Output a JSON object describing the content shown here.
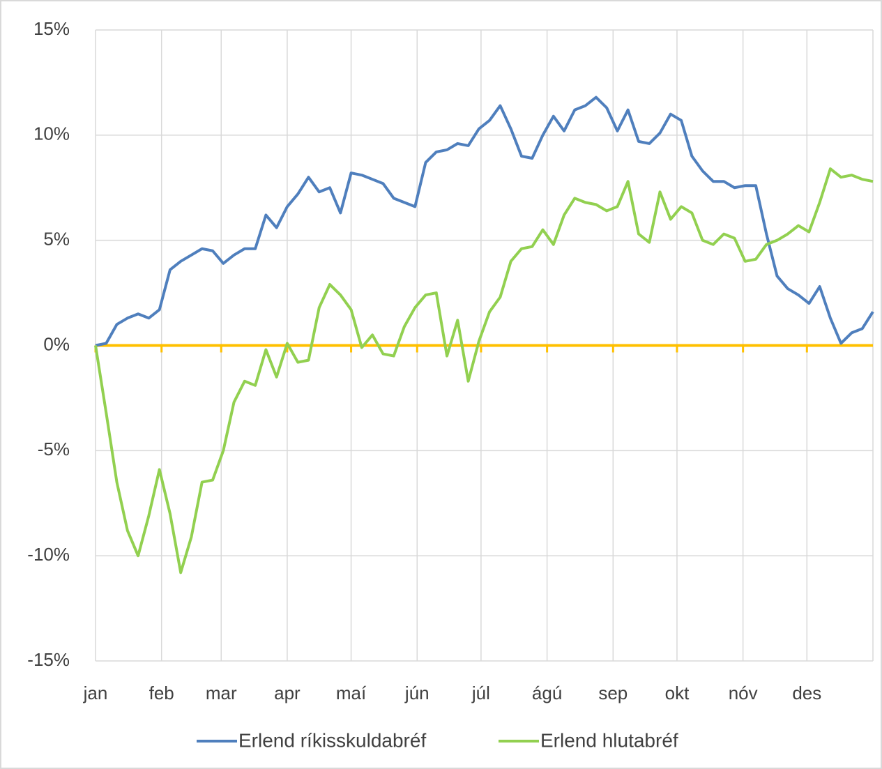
{
  "chart_data": {
    "type": "line",
    "xlim": [
      0,
      365
    ],
    "xticks": [
      {
        "value": 0,
        "label": "jan"
      },
      {
        "value": 31,
        "label": "feb"
      },
      {
        "value": 59,
        "label": "mar"
      },
      {
        "value": 90,
        "label": "apr"
      },
      {
        "value": 120,
        "label": "maí"
      },
      {
        "value": 151,
        "label": "jún"
      },
      {
        "value": 181,
        "label": "júl"
      },
      {
        "value": 212,
        "label": "ágú"
      },
      {
        "value": 243,
        "label": "sep"
      },
      {
        "value": 273,
        "label": "okt"
      },
      {
        "value": 304,
        "label": "nóv"
      },
      {
        "value": 334,
        "label": "des"
      }
    ],
    "ylim": [
      -15,
      15
    ],
    "yticks": [
      {
        "value": 15,
        "label": "15%"
      },
      {
        "value": 10,
        "label": "10%"
      },
      {
        "value": 5,
        "label": "5%"
      },
      {
        "value": 0,
        "label": "0%"
      },
      {
        "value": -5,
        "label": "-5%"
      },
      {
        "value": -10,
        "label": "-10%"
      },
      {
        "value": -15,
        "label": "-15%"
      }
    ],
    "grid": true,
    "axis_color": "#ffc000",
    "legend": "bottom",
    "x": [
      0,
      5,
      10,
      15,
      20,
      25,
      30,
      35,
      40,
      45,
      50,
      55,
      60,
      65,
      70,
      75,
      80,
      85,
      90,
      95,
      100,
      105,
      110,
      115,
      120,
      125,
      130,
      135,
      140,
      145,
      150,
      155,
      160,
      165,
      170,
      175,
      180,
      185,
      190,
      195,
      200,
      205,
      210,
      215,
      220,
      225,
      230,
      235,
      240,
      245,
      250,
      255,
      260,
      265,
      270,
      275,
      280,
      285,
      290,
      295,
      300,
      305,
      310,
      315,
      320,
      325,
      330,
      335,
      340,
      345,
      350,
      355,
      360,
      365
    ],
    "series": [
      {
        "name": "Erlend ríkisskuldabréf",
        "color": "#4f7fbd",
        "values": [
          0,
          0.1,
          1.0,
          1.3,
          1.5,
          1.3,
          1.7,
          3.6,
          4.0,
          4.3,
          4.6,
          4.5,
          3.9,
          4.3,
          4.6,
          4.6,
          6.2,
          5.6,
          6.6,
          7.2,
          8.0,
          7.3,
          7.5,
          6.3,
          8.2,
          8.1,
          7.9,
          7.7,
          7.0,
          6.8,
          6.6,
          8.7,
          9.2,
          9.3,
          9.6,
          9.5,
          10.3,
          10.7,
          11.4,
          10.3,
          9.0,
          8.9,
          10.0,
          10.9,
          10.2,
          11.2,
          11.4,
          11.8,
          11.3,
          10.2,
          11.2,
          9.7,
          9.6,
          10.1,
          11.0,
          10.7,
          9.0,
          8.3,
          7.8,
          7.8,
          7.5,
          7.6,
          7.6,
          5.3,
          3.3,
          2.7,
          2.4,
          2.0,
          2.8,
          1.3,
          0.1,
          0.6,
          0.8,
          1.6
        ]
      },
      {
        "name": "Erlend hlutabréf",
        "color": "#92d050",
        "values": [
          0,
          -3.2,
          -6.5,
          -8.8,
          -10.0,
          -8.1,
          -5.9,
          -8.0,
          -10.8,
          -9.1,
          -6.5,
          -6.4,
          -5.0,
          -2.7,
          -1.7,
          -1.9,
          -0.2,
          -1.5,
          0.1,
          -0.8,
          -0.7,
          1.8,
          2.9,
          2.4,
          1.7,
          -0.1,
          0.5,
          -0.4,
          -0.5,
          0.9,
          1.8,
          2.4,
          2.5,
          -0.5,
          1.2,
          -1.7,
          0.2,
          1.6,
          2.3,
          4.0,
          4.6,
          4.7,
          5.5,
          4.8,
          6.2,
          7.0,
          6.8,
          6.7,
          6.4,
          6.6,
          7.8,
          5.3,
          4.9,
          7.3,
          6.0,
          6.6,
          6.3,
          5.0,
          4.8,
          5.3,
          5.1,
          4.0,
          4.1,
          4.8,
          5.0,
          5.3,
          5.7,
          5.4,
          6.8,
          8.4,
          8.0,
          8.1,
          7.9,
          7.8
        ]
      }
    ]
  }
}
